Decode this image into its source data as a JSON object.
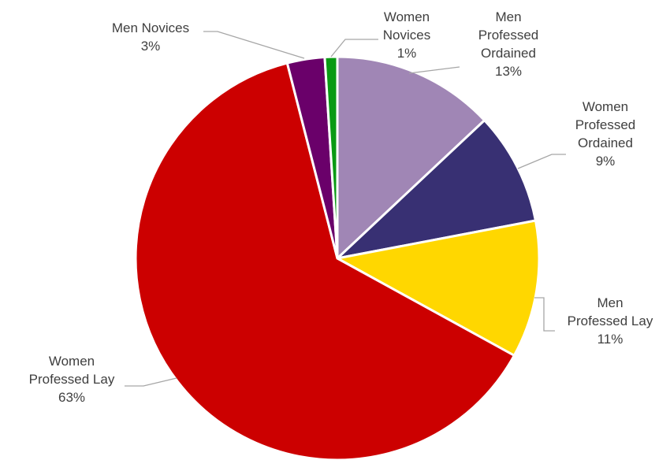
{
  "chart_data": {
    "type": "pie",
    "title": "",
    "slices": [
      {
        "label_lines": [
          "Men",
          "Professed",
          "Ordained"
        ],
        "percent_label": "13%",
        "value": 13,
        "color": "#a086b5"
      },
      {
        "label_lines": [
          "Women",
          "Professed",
          "Ordained"
        ],
        "percent_label": "9%",
        "value": 9,
        "color": "#383073"
      },
      {
        "label_lines": [
          "Men",
          "Professed Lay"
        ],
        "percent_label": "11%",
        "value": 11,
        "color": "#ffd700"
      },
      {
        "label_lines": [
          "Women",
          "Professed Lay"
        ],
        "percent_label": "63%",
        "value": 63,
        "color": "#cc0000"
      },
      {
        "label_lines": [
          "Men Novices"
        ],
        "percent_label": "3%",
        "value": 3,
        "color": "#6a006a"
      },
      {
        "label_lines": [
          "Women",
          "Novices"
        ],
        "percent_label": "1%",
        "value": 1,
        "color": "#0a9a14"
      }
    ]
  }
}
